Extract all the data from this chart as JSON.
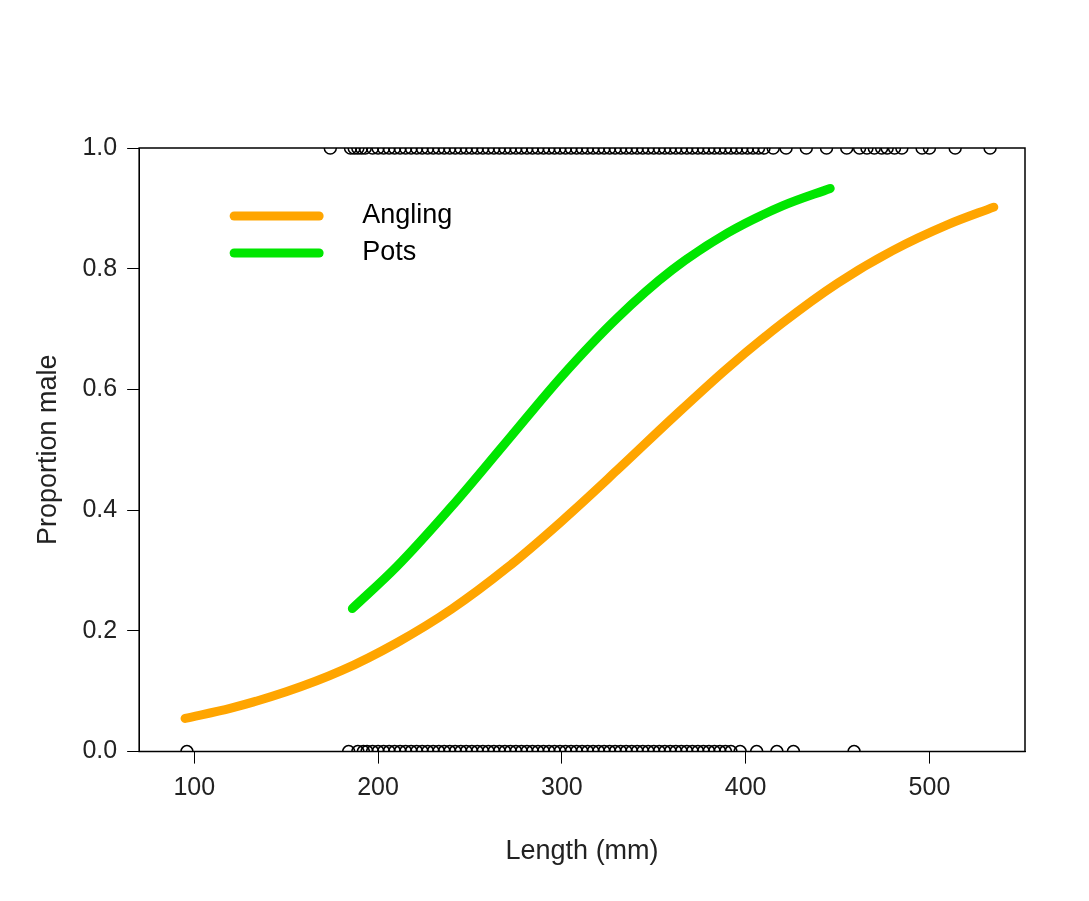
{
  "chart_data": {
    "type": "line",
    "xlabel": "Length (mm)",
    "ylabel": "Proportion male",
    "xlim": [
      70,
      552
    ],
    "ylim": [
      0,
      1
    ],
    "xticks": [
      100,
      200,
      300,
      400,
      500
    ],
    "yticks": [
      {
        "value": 0,
        "label": "0.0"
      },
      {
        "value": 0.2,
        "label": "0.2"
      },
      {
        "value": 0.4,
        "label": "0.4"
      },
      {
        "value": 0.6,
        "label": "0.6"
      },
      {
        "value": 0.8,
        "label": "0.8"
      },
      {
        "value": 1,
        "label": "1.0"
      }
    ],
    "grid": false,
    "legend": "top left",
    "series": [
      {
        "name": "Angling",
        "color": "#ffa500",
        "marker": "none",
        "x": [
          95,
          120,
          150,
          180,
          210,
          240,
          270,
          300,
          330,
          360,
          390,
          420,
          450,
          480,
          510,
          535
        ],
        "values": [
          0.055,
          0.072,
          0.099,
          0.134,
          0.18,
          0.236,
          0.304,
          0.382,
          0.466,
          0.552,
          0.635,
          0.71,
          0.776,
          0.83,
          0.873,
          0.902
        ]
      },
      {
        "name": "Pots",
        "color": "#00e600",
        "marker": "none",
        "x": [
          186,
          210,
          240,
          270,
          300,
          330,
          360,
          390,
          420,
          446
        ],
        "values": [
          0.237,
          0.306,
          0.406,
          0.514,
          0.622,
          0.718,
          0.798,
          0.859,
          0.904,
          0.933
        ]
      },
      {
        "color": "#000000",
        "type": "scatter",
        "marker": "circle",
        "x": [
          174,
          185,
          187,
          189,
          191,
          193,
          197,
          200,
          203,
          206,
          209,
          212,
          215,
          218,
          221,
          224,
          227,
          230,
          233,
          236,
          239,
          242,
          245,
          248,
          251,
          254,
          257,
          260,
          263,
          266,
          269,
          272,
          275,
          278,
          281,
          284,
          287,
          290,
          293,
          296,
          299,
          302,
          305,
          308,
          311,
          314,
          317,
          320,
          323,
          326,
          329,
          332,
          335,
          338,
          341,
          344,
          347,
          350,
          353,
          356,
          359,
          362,
          365,
          368,
          371,
          374,
          377,
          380,
          383,
          386,
          389,
          392,
          395,
          398,
          401,
          404,
          407,
          410,
          415,
          422,
          433,
          444,
          455,
          462,
          466,
          470,
          474,
          477,
          481,
          485,
          496,
          500,
          514,
          533
        ],
        "values": [
          1,
          1,
          1,
          1,
          1,
          1,
          1,
          1,
          1,
          1,
          1,
          1,
          1,
          1,
          1,
          1,
          1,
          1,
          1,
          1,
          1,
          1,
          1,
          1,
          1,
          1,
          1,
          1,
          1,
          1,
          1,
          1,
          1,
          1,
          1,
          1,
          1,
          1,
          1,
          1,
          1,
          1,
          1,
          1,
          1,
          1,
          1,
          1,
          1,
          1,
          1,
          1,
          1,
          1,
          1,
          1,
          1,
          1,
          1,
          1,
          1,
          1,
          1,
          1,
          1,
          1,
          1,
          1,
          1,
          1,
          1,
          1,
          1,
          1,
          1,
          1,
          1,
          1,
          1,
          1,
          1,
          1,
          1,
          1,
          1,
          1,
          1,
          1,
          1,
          1,
          1,
          1,
          1,
          1
        ]
      },
      {
        "color": "#000000",
        "type": "scatter",
        "marker": "circle",
        "x": [
          96,
          184,
          189,
          192,
          194,
          197,
          200,
          203,
          206,
          209,
          212,
          215,
          218,
          221,
          224,
          227,
          230,
          233,
          236,
          239,
          242,
          245,
          248,
          251,
          254,
          257,
          260,
          263,
          266,
          269,
          272,
          275,
          278,
          281,
          284,
          287,
          290,
          293,
          296,
          299,
          302,
          305,
          308,
          311,
          314,
          317,
          320,
          323,
          326,
          329,
          332,
          335,
          338,
          341,
          344,
          347,
          350,
          353,
          356,
          359,
          362,
          365,
          368,
          371,
          374,
          377,
          380,
          383,
          386,
          389,
          392,
          397,
          406,
          417,
          426,
          459
        ],
        "values": [
          0,
          0,
          0,
          0,
          0,
          0,
          0,
          0,
          0,
          0,
          0,
          0,
          0,
          0,
          0,
          0,
          0,
          0,
          0,
          0,
          0,
          0,
          0,
          0,
          0,
          0,
          0,
          0,
          0,
          0,
          0,
          0,
          0,
          0,
          0,
          0,
          0,
          0,
          0,
          0,
          0,
          0,
          0,
          0,
          0,
          0,
          0,
          0,
          0,
          0,
          0,
          0,
          0,
          0,
          0,
          0,
          0,
          0,
          0,
          0,
          0,
          0,
          0,
          0,
          0,
          0,
          0,
          0,
          0,
          0,
          0,
          0,
          0,
          0,
          0,
          0
        ]
      }
    ]
  }
}
